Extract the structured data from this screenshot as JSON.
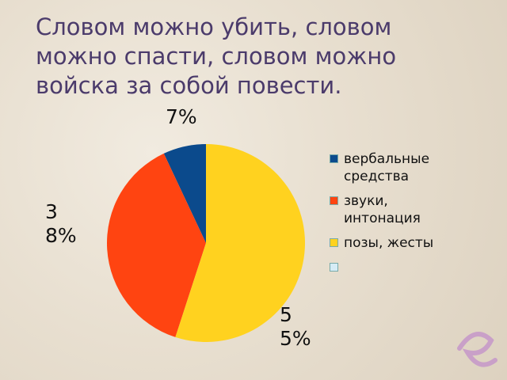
{
  "chart_data": {
    "type": "pie",
    "title": "Словом можно убить, словом можно спасти, словом можно войска за собой повести.",
    "categories": [
      "вербальные средства",
      "звуки, интонация",
      "позы, жесты",
      null
    ],
    "values": [
      7,
      38,
      55,
      null
    ],
    "value_labels": [
      "7%",
      "38%",
      "55%",
      null
    ],
    "colors": [
      "#0b4a8c",
      "#ff4411",
      "#ffd21f",
      "#d6ecf6"
    ],
    "legend": "right"
  }
}
